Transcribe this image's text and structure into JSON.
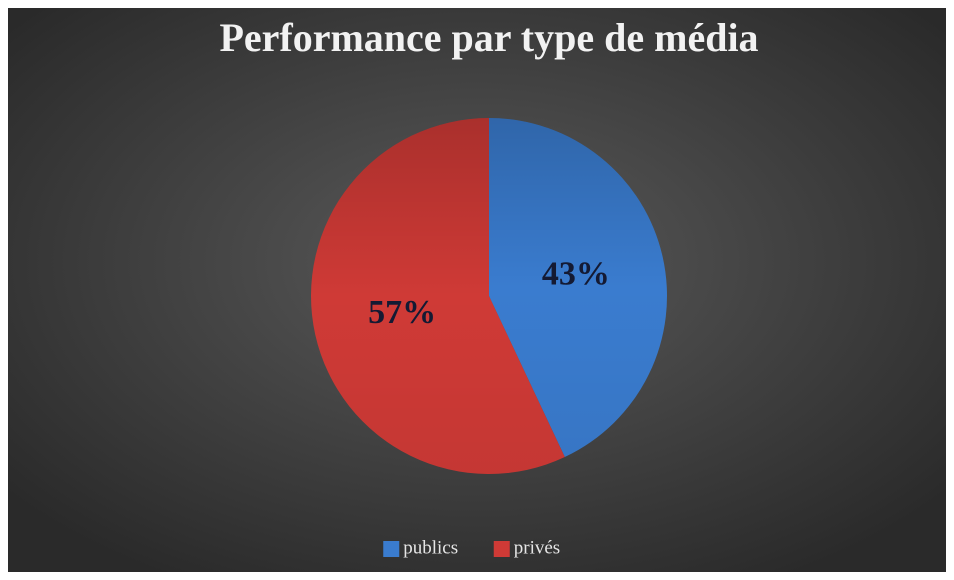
{
  "chart_data": {
    "type": "pie",
    "title": "Performance par type de média",
    "categories": [
      "publics",
      "privés"
    ],
    "values": [
      43,
      57
    ],
    "value_labels": [
      "43%",
      "57%"
    ],
    "colors": [
      "#3a7ccf",
      "#cf3a36"
    ],
    "legend": "bottom"
  }
}
